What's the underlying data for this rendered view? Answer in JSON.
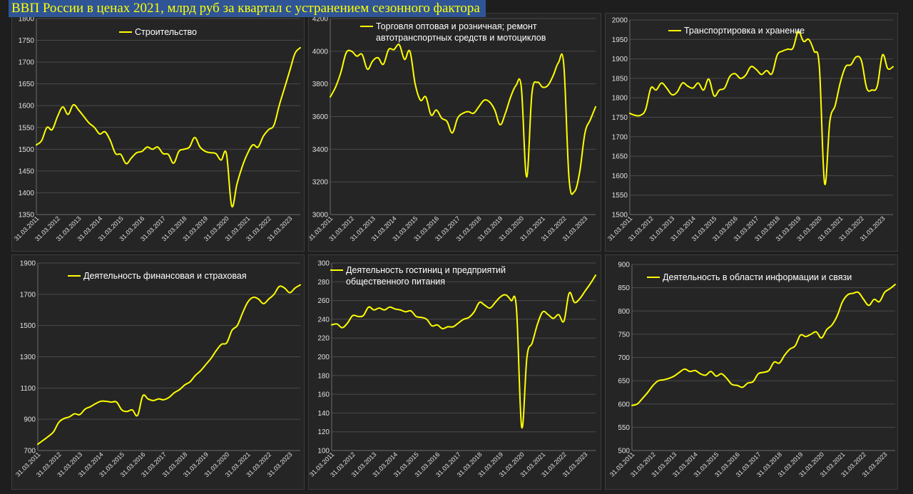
{
  "page_title": "ВВП России в ценах 2021, млрд руб за квартал с устранением сезонного фактора",
  "colors": {
    "series": "#ffff00",
    "background": "#1e1e1e",
    "panel": "#252525",
    "grid": "#4a4a4a",
    "title_bg": "#2f5597"
  },
  "chart_data": [
    {
      "type": "line",
      "title": "",
      "legend": [
        "Строительство"
      ],
      "legend_placement": "top-center",
      "grid": true,
      "ylim": [
        1350,
        1800
      ],
      "yticks": [
        1350,
        1400,
        1450,
        1500,
        1550,
        1600,
        1650,
        1700,
        1750,
        1800
      ],
      "xticks": [
        "31.03.2011",
        "31.03.2012",
        "31.03.2013",
        "31.03.2014",
        "31.03.2015",
        "31.03.2016",
        "31.03.2017",
        "31.03.2018",
        "31.03.2019",
        "31.03.2020",
        "31.03.2021",
        "31.03.2022",
        "31.03.2023"
      ],
      "series": [
        {
          "name": "Строительство",
          "values": [
            1510,
            1520,
            1550,
            1545,
            1575,
            1597,
            1580,
            1602,
            1590,
            1575,
            1560,
            1550,
            1535,
            1540,
            1520,
            1490,
            1488,
            1467,
            1480,
            1492,
            1495,
            1505,
            1500,
            1505,
            1490,
            1488,
            1468,
            1495,
            1500,
            1505,
            1527,
            1505,
            1495,
            1492,
            1490,
            1475,
            1490,
            1370,
            1420,
            1460,
            1490,
            1510,
            1505,
            1530,
            1545,
            1555,
            1600,
            1640,
            1680,
            1720,
            1733
          ]
        }
      ]
    },
    {
      "type": "line",
      "title": "",
      "legend": [
        "Торговля оптовая и розничная; ремонт автотранспортных средств и мотоциклов"
      ],
      "legend_placement": "top-center",
      "grid": true,
      "ylim": [
        3000,
        4200
      ],
      "yticks": [
        3000,
        3200,
        3400,
        3600,
        3800,
        4000,
        4200
      ],
      "xticks": [
        "31.03.2011",
        "31.03.2012",
        "31.03.2013",
        "31.03.2014",
        "31.03.2015",
        "31.03.2016",
        "31.03.2017",
        "31.03.2018",
        "31.03.2019",
        "31.03.2020",
        "31.03.2021",
        "31.03.2022",
        "31.03.2023"
      ],
      "series": [
        {
          "name": "Торговля оптовая и розничная; ремонт автотранспортных средств и мотоциклов",
          "values": [
            3720,
            3780,
            3870,
            3990,
            4000,
            3970,
            3980,
            3890,
            3940,
            3960,
            3920,
            4010,
            4010,
            4040,
            3950,
            4000,
            3800,
            3700,
            3720,
            3610,
            3640,
            3590,
            3570,
            3500,
            3590,
            3620,
            3630,
            3620,
            3660,
            3700,
            3690,
            3640,
            3550,
            3620,
            3720,
            3790,
            3780,
            3230,
            3740,
            3810,
            3780,
            3790,
            3850,
            3930,
            3920,
            3220,
            3140,
            3260,
            3500,
            3580,
            3660
          ]
        }
      ]
    },
    {
      "type": "line",
      "title": "",
      "legend": [
        "Транспортировка и хранение"
      ],
      "legend_placement": "top-center",
      "grid": true,
      "ylim": [
        1500,
        2000
      ],
      "yticks": [
        1500,
        1550,
        1600,
        1650,
        1700,
        1750,
        1800,
        1850,
        1900,
        1950,
        2000
      ],
      "xticks": [
        "31.03.2011",
        "31.03.2012",
        "31.03.2013",
        "31.03.2014",
        "31.03.2015",
        "31.03.2016",
        "31.03.2017",
        "31.03.2018",
        "31.03.2019",
        "31.03.2020",
        "31.03.2021",
        "31.03.2022",
        "31.03.2023"
      ],
      "series": [
        {
          "name": "Транспортировка и хранение",
          "values": [
            1760,
            1755,
            1755,
            1770,
            1825,
            1820,
            1838,
            1825,
            1808,
            1815,
            1838,
            1830,
            1825,
            1838,
            1820,
            1848,
            1805,
            1820,
            1825,
            1855,
            1862,
            1850,
            1858,
            1880,
            1873,
            1860,
            1870,
            1862,
            1910,
            1920,
            1925,
            1928,
            1970,
            1945,
            1950,
            1920,
            1880,
            1580,
            1740,
            1780,
            1840,
            1880,
            1885,
            1905,
            1895,
            1825,
            1820,
            1830,
            1910,
            1875,
            1880
          ]
        }
      ]
    },
    {
      "type": "line",
      "title": "",
      "legend": [
        "Деятельность финансовая и страховая"
      ],
      "legend_placement": "top-center",
      "grid": true,
      "ylim": [
        700,
        1900
      ],
      "yticks": [
        700,
        900,
        1100,
        1300,
        1500,
        1700,
        1900
      ],
      "xticks": [
        "31.03.2011",
        "31.03.2012",
        "31.03.2013",
        "31.03.2014",
        "31.03.2015",
        "31.03.2016",
        "31.03.2017",
        "31.03.2018",
        "31.03.2019",
        "31.03.2020",
        "31.03.2021",
        "31.03.2022",
        "31.03.2023"
      ],
      "series": [
        {
          "name": "Деятельность финансовая и страховая",
          "values": [
            740,
            765,
            790,
            820,
            880,
            905,
            915,
            935,
            930,
            965,
            980,
            1000,
            1015,
            1015,
            1010,
            1010,
            960,
            950,
            960,
            925,
            1050,
            1030,
            1020,
            1030,
            1025,
            1040,
            1070,
            1090,
            1120,
            1140,
            1180,
            1210,
            1250,
            1290,
            1340,
            1380,
            1390,
            1470,
            1500,
            1580,
            1650,
            1680,
            1670,
            1640,
            1670,
            1700,
            1750,
            1740,
            1710,
            1740,
            1760
          ]
        }
      ]
    },
    {
      "type": "line",
      "title": "",
      "legend": [
        "Деятельность гостиниц и предприятий общественного питания"
      ],
      "legend_placement": "top-center",
      "grid": true,
      "ylim": [
        100,
        300
      ],
      "yticks": [
        100,
        120,
        140,
        160,
        180,
        200,
        220,
        240,
        260,
        280,
        300
      ],
      "xticks": [
        "31.03.2011",
        "31.03.2012",
        "31.03.2013",
        "31.03.2014",
        "31.03.2015",
        "31.03.2016",
        "31.03.2017",
        "31.03.2018",
        "31.03.2019",
        "31.03.2020",
        "31.03.2021",
        "31.03.2022",
        "31.03.2023"
      ],
      "series": [
        {
          "name": "Деятельность гостиниц и предприятий общественного питания",
          "values": [
            234,
            235,
            231,
            236,
            244,
            243,
            244,
            253,
            250,
            252,
            250,
            253,
            251,
            250,
            248,
            249,
            243,
            242,
            240,
            233,
            234,
            230,
            232,
            232,
            236,
            240,
            242,
            248,
            258,
            255,
            252,
            258,
            264,
            266,
            260,
            252,
            125,
            200,
            215,
            235,
            248,
            245,
            241,
            245,
            238,
            268,
            258,
            262,
            270,
            278,
            287
          ]
        }
      ]
    },
    {
      "type": "line",
      "title": "",
      "legend": [
        "Деятельность в области информации и связи"
      ],
      "legend_placement": "top-center",
      "grid": true,
      "ylim": [
        500,
        900
      ],
      "yticks": [
        500,
        550,
        600,
        650,
        700,
        750,
        800,
        850,
        900
      ],
      "xticks": [
        "31.03.2011",
        "31.03.2012",
        "31.03.2013",
        "31.03.2014",
        "31.03.2015",
        "31.03.2016",
        "31.03.2017",
        "31.03.2018",
        "31.03.2019",
        "31.03.2020",
        "31.03.2021",
        "31.03.2022",
        "31.03.2023"
      ],
      "series": [
        {
          "name": "Деятельность в области информации и связи",
          "values": [
            597,
            600,
            612,
            625,
            640,
            650,
            652,
            655,
            660,
            668,
            675,
            670,
            672,
            665,
            662,
            670,
            660,
            665,
            655,
            642,
            640,
            636,
            645,
            648,
            665,
            668,
            672,
            690,
            688,
            705,
            718,
            725,
            748,
            745,
            750,
            755,
            742,
            760,
            770,
            790,
            820,
            835,
            838,
            840,
            825,
            812,
            825,
            820,
            840,
            848,
            857
          ]
        }
      ]
    }
  ]
}
